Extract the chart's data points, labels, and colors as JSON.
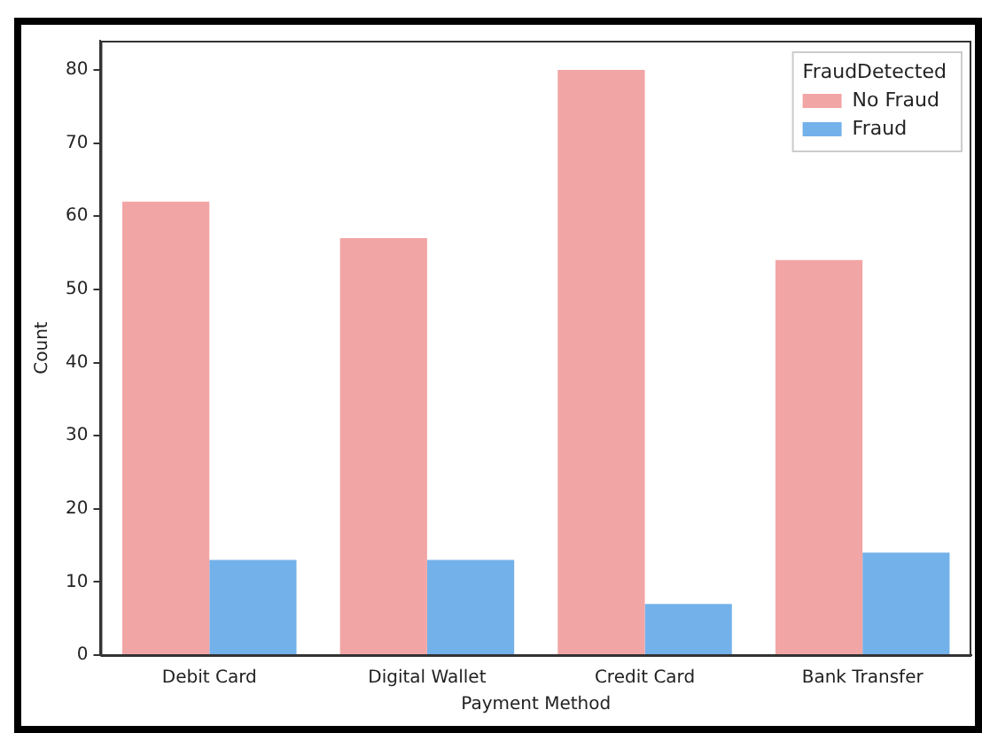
{
  "chart_data": {
    "type": "bar",
    "xlabel": "Payment Method",
    "ylabel": "Count",
    "legend_title": "FraudDetected",
    "categories": [
      "Debit Card",
      "Digital Wallet",
      "Credit Card",
      "Bank Transfer"
    ],
    "series": [
      {
        "name": "No Fraud",
        "color": "#f2a5a5",
        "values": [
          62,
          57,
          80,
          54
        ]
      },
      {
        "name": "Fraud",
        "color": "#73b1ea",
        "values": [
          13,
          13,
          7,
          14
        ]
      }
    ],
    "ylim": [
      0,
      84
    ],
    "yticks": [
      0,
      10,
      20,
      30,
      40,
      50,
      60,
      70,
      80
    ],
    "grid": false,
    "legend": "top right"
  }
}
